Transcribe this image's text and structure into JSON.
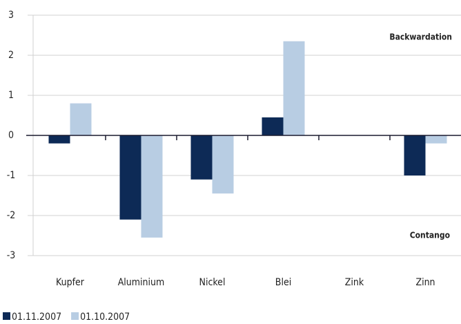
{
  "chart_data": {
    "type": "bar",
    "categories": [
      "Kupfer",
      "Aluminium",
      "Nickel",
      "Blei",
      "Zink",
      "Zinn"
    ],
    "series": [
      {
        "name": "01.11.2007",
        "color": "#0d2a56",
        "values": [
          -0.2,
          -2.1,
          -1.1,
          0.45,
          null,
          -1.0
        ]
      },
      {
        "name": "01.10.2007",
        "color": "#b8cde3",
        "values": [
          0.8,
          -2.55,
          -1.45,
          2.35,
          null,
          -0.2
        ]
      }
    ],
    "ylim": [
      -3,
      3
    ],
    "yticks": [
      -3,
      -2,
      -1,
      0,
      1,
      2,
      3
    ],
    "grid": true,
    "annotations": [
      "Backwardation",
      "Contango"
    ]
  }
}
